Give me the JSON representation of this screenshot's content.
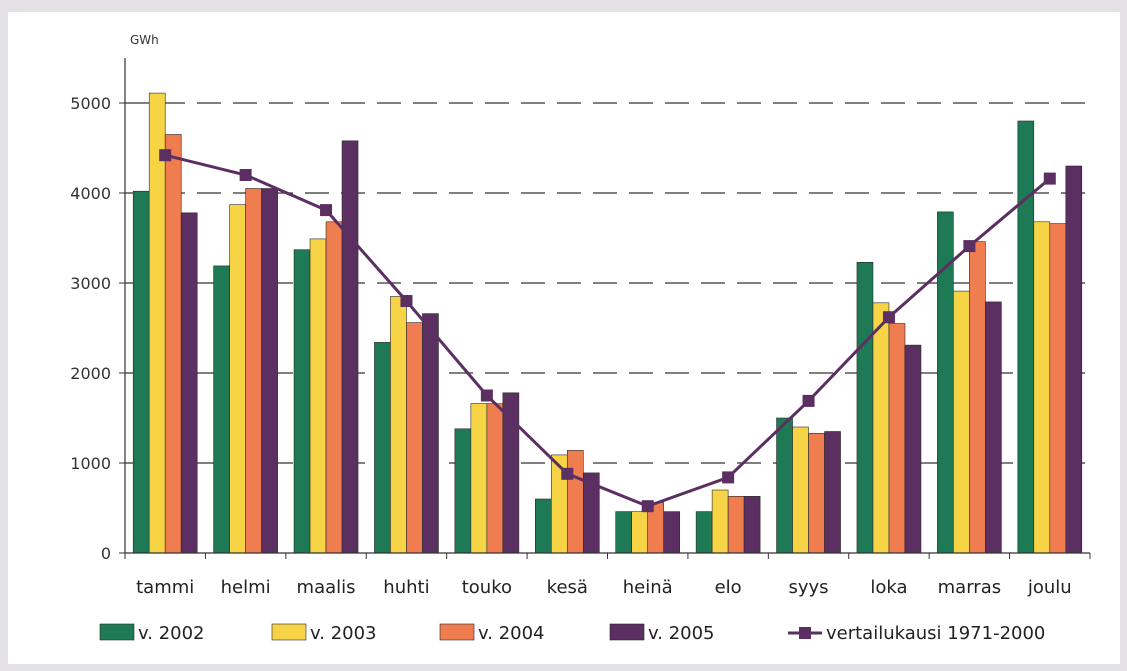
{
  "chart_data": {
    "type": "bar",
    "unit_label": "GWh",
    "ylim": [
      0,
      5500
    ],
    "yticks": [
      0,
      1000,
      2000,
      3000,
      4000,
      5000
    ],
    "grid": "dashed horizontal",
    "legend_position": "bottom",
    "categories": [
      "tammi",
      "helmi",
      "maalis",
      "huhti",
      "touko",
      "kesä",
      "heinä",
      "elo",
      "syys",
      "loka",
      "marras",
      "joulu"
    ],
    "series": [
      {
        "name": "v. 2002",
        "color": "#1e7a55",
        "values": [
          4020,
          3190,
          3370,
          2340,
          1380,
          600,
          460,
          460,
          1500,
          3230,
          3790,
          4800
        ]
      },
      {
        "name": "v. 2003",
        "color": "#f6d445",
        "values": [
          5110,
          3870,
          3490,
          2850,
          1660,
          1090,
          460,
          700,
          1400,
          2780,
          2910,
          3680
        ]
      },
      {
        "name": "v. 2004",
        "color": "#ef7d4f",
        "values": [
          4650,
          4050,
          3680,
          2560,
          1660,
          1140,
          560,
          630,
          1330,
          2550,
          3460,
          3660
        ]
      },
      {
        "name": "v. 2005",
        "color": "#5b2f62",
        "values": [
          3780,
          4050,
          4580,
          2660,
          1780,
          890,
          460,
          630,
          1350,
          2310,
          2790,
          4300
        ]
      }
    ],
    "line_series": {
      "name": "vertailukausi 1971-2000",
      "color": "#5b2f62",
      "values": [
        4420,
        4200,
        3810,
        2800,
        1750,
        880,
        520,
        840,
        1690,
        2620,
        3410,
        4160
      ]
    }
  }
}
